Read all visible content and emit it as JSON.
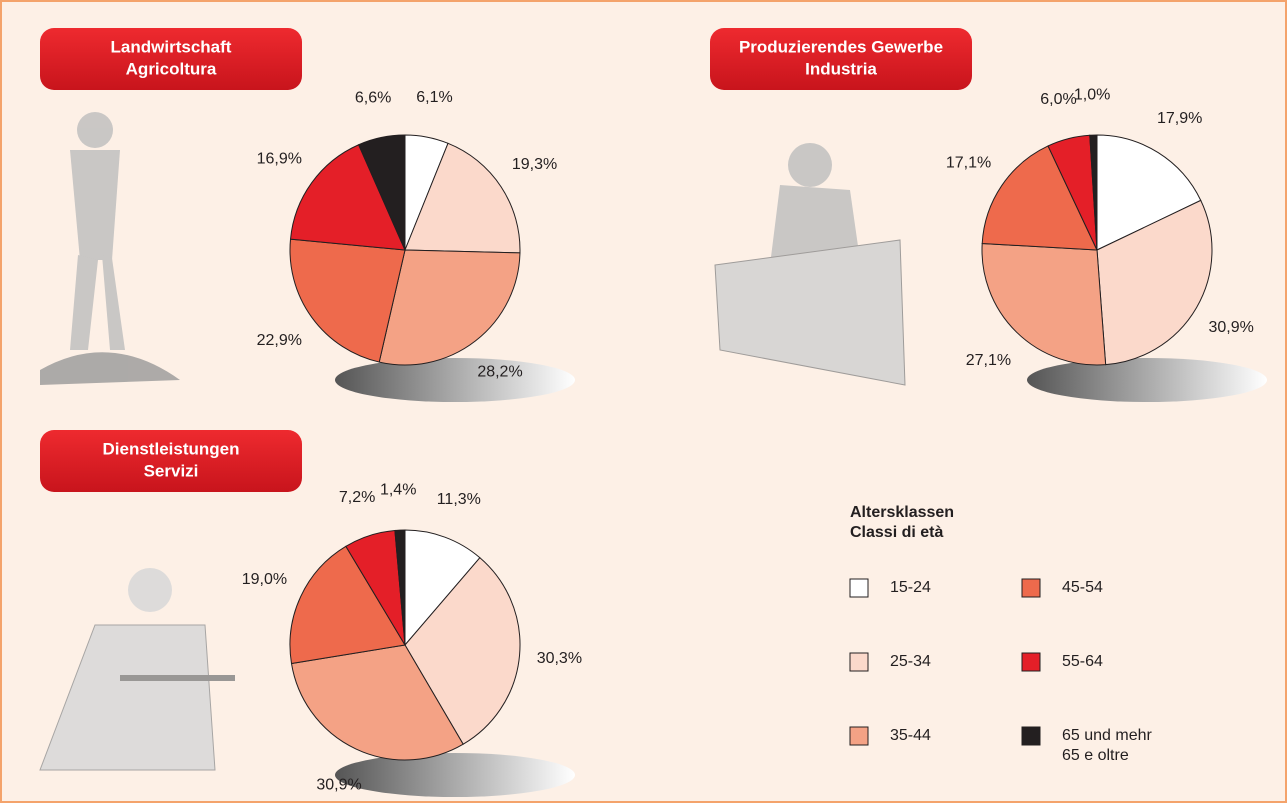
{
  "chart_data": [
    {
      "type": "pie",
      "title": [
        "Landwirtschaft",
        "Agricoltura"
      ],
      "values": [
        6.1,
        19.3,
        28.2,
        22.9,
        16.9,
        6.6
      ],
      "value_labels": [
        "6,1%",
        "19,3%",
        "28,2%",
        "22,9%",
        "16,9%",
        "6,6%"
      ]
    },
    {
      "type": "pie",
      "title": [
        "Produzierendes Gewerbe",
        "Industria"
      ],
      "values": [
        17.9,
        30.9,
        27.1,
        17.1,
        6.0,
        1.0
      ],
      "value_labels": [
        "17,9%",
        "30,9%",
        "27,1%",
        "17,1%",
        "6,0%",
        "1,0%"
      ]
    },
    {
      "type": "pie",
      "title": [
        "Dienstleistungen",
        "Servizi"
      ],
      "values": [
        11.3,
        30.3,
        30.9,
        19.0,
        7.2,
        1.4
      ],
      "value_labels": [
        "11,3%",
        "30,3%",
        "30,9%",
        "19,0%",
        "7,2%",
        "1,4%"
      ]
    }
  ],
  "legend": {
    "title": [
      "Altersklassen",
      "Classi di età"
    ],
    "categories": [
      [
        "15-24"
      ],
      [
        "25-34"
      ],
      [
        "35-44"
      ],
      [
        "45-54"
      ],
      [
        "55-64"
      ],
      [
        "65 und mehr",
        "65 e oltre"
      ]
    ],
    "colors": [
      "#ffffff",
      "#fbd9cb",
      "#f4a285",
      "#ee6a4c",
      "#e41f28",
      "#231f20"
    ]
  }
}
